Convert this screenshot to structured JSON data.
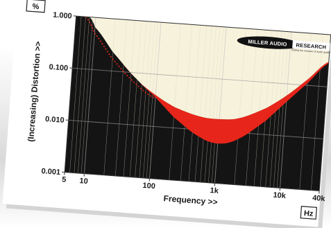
{
  "chart_data": {
    "type": "area",
    "title": "",
    "xlabel": "Frequency >>",
    "ylabel": "(Increasing) Distortion >>",
    "x_unit": "Hz",
    "y_unit": "%",
    "x_scale": "log",
    "y_scale": "log",
    "xlim": [
      5,
      40000
    ],
    "ylim": [
      0.001,
      1.0
    ],
    "x_tick_labels": [
      "5",
      "10",
      "100",
      "1k",
      "10k",
      "40k"
    ],
    "x_tick_values": [
      5,
      10,
      100,
      1000,
      10000,
      40000
    ],
    "y_tick_labels": [
      "1.000",
      "0.100",
      "0.010",
      "0.001"
    ],
    "y_tick_values": [
      1.0,
      0.1,
      0.01,
      0.001
    ],
    "grid": true,
    "legend": "none",
    "brand_logo": {
      "line1_left": "MILLER AUDIO",
      "line1_right": "RESEARCH",
      "tagline": "Getting the measure of audio quality"
    },
    "series": [
      {
        "role": "upper_boundary",
        "points": [
          [
            8,
            1.0
          ],
          [
            10,
            0.65
          ],
          [
            20,
            0.23
          ],
          [
            50,
            0.075
          ],
          [
            100,
            0.04
          ],
          [
            200,
            0.025
          ],
          [
            500,
            0.018
          ],
          [
            1000,
            0.017
          ],
          [
            2000,
            0.019
          ],
          [
            5000,
            0.032
          ],
          [
            10000,
            0.06
          ],
          [
            20000,
            0.13
          ],
          [
            40000,
            0.3
          ]
        ]
      },
      {
        "role": "lower_boundary",
        "points": [
          [
            8,
            1.0
          ],
          [
            10,
            0.65
          ],
          [
            20,
            0.23
          ],
          [
            50,
            0.075
          ],
          [
            100,
            0.036
          ],
          [
            200,
            0.016
          ],
          [
            500,
            0.0075
          ],
          [
            1000,
            0.0058
          ],
          [
            2000,
            0.0075
          ],
          [
            5000,
            0.018
          ],
          [
            10000,
            0.045
          ],
          [
            20000,
            0.11
          ],
          [
            40000,
            0.28
          ]
        ]
      },
      {
        "role": "dotted_trace",
        "points": [
          [
            7,
            1.0
          ],
          [
            10,
            0.5
          ],
          [
            20,
            0.17
          ],
          [
            50,
            0.06
          ],
          [
            100,
            0.035
          ]
        ]
      }
    ],
    "colors": {
      "band": "#e8251a",
      "above": "#f7f2dc",
      "below": "#141414",
      "dotted_trace": "#e8251a",
      "card": "#ffffff",
      "border": "#333333"
    }
  }
}
